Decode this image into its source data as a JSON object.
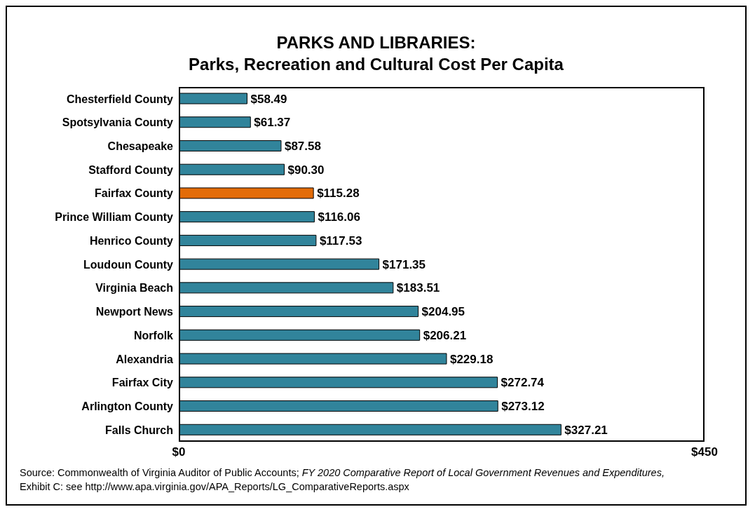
{
  "chart_data": {
    "type": "bar",
    "orientation": "horizontal",
    "title": "PARKS AND LIBRARIES:",
    "subtitle": "Parks, Recreation and Cultural Cost Per Capita",
    "categories": [
      "Chesterfield County",
      "Spotsylvania County",
      "Chesapeake",
      "Stafford County",
      "Fairfax County",
      "Prince William County",
      "Henrico County",
      "Loudoun County",
      "Virginia Beach",
      "Newport News",
      "Norfolk",
      "Alexandria",
      "Fairfax City",
      "Arlington County",
      "Falls Church"
    ],
    "values": [
      58.49,
      61.37,
      87.58,
      90.3,
      115.28,
      116.06,
      117.53,
      171.35,
      183.51,
      204.95,
      206.21,
      229.18,
      272.74,
      273.12,
      327.21
    ],
    "value_labels": [
      "$58.49",
      "$61.37",
      "$87.58",
      "$90.30",
      "$115.28",
      "$116.06",
      "$117.53",
      "$171.35",
      "$183.51",
      "$204.95",
      "$206.21",
      "$229.18",
      "$272.74",
      "$273.12",
      "$327.21"
    ],
    "colors": [
      "#31849b",
      "#31849b",
      "#31849b",
      "#31849b",
      "#e36c09",
      "#31849b",
      "#31849b",
      "#31849b",
      "#31849b",
      "#31849b",
      "#31849b",
      "#31849b",
      "#31849b",
      "#31849b",
      "#31849b"
    ],
    "xlim": [
      0,
      450
    ],
    "xticks": [
      {
        "value": 0,
        "label": "$0"
      },
      {
        "value": 450,
        "label": "$450"
      }
    ],
    "grid": false,
    "legend": false,
    "annotations": [
      "Source: Commonwealth of Virginia Auditor of Public Accounts; ",
      "FY 2020 Comparative Report of Local Government Revenues and Expenditures,",
      "Exhibit C: see http://www.apa.virginia.gov/APA_Reports/LG_ComparativeReports.aspx"
    ]
  }
}
